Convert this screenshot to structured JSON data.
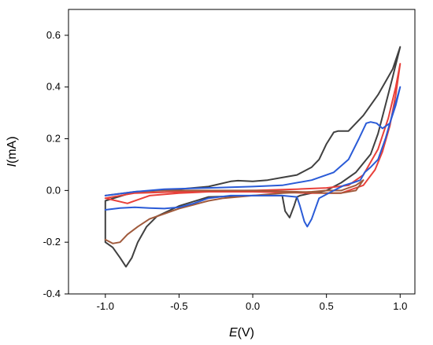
{
  "chart_data": {
    "type": "line",
    "xlabel_symbol": "E",
    "xlabel_unit": "(V)",
    "ylabel_symbol": "I",
    "ylabel_unit": "(mA)",
    "xlim": [
      -1.25,
      1.1
    ],
    "ylim": [
      -0.4,
      0.7
    ],
    "x_ticks": [
      -1.0,
      -0.5,
      0.0,
      0.5,
      1.0
    ],
    "x_tick_labels": [
      "-1.0",
      "-0.5",
      "0.0",
      "0.5",
      "1.0"
    ],
    "y_ticks": [
      -0.4,
      -0.2,
      0.0,
      0.2,
      0.4,
      0.6
    ],
    "y_tick_labels": [
      "-0.4",
      "-0.2",
      "0.0",
      "0.2",
      "0.4",
      "0.6"
    ],
    "grid": false,
    "legend": "none",
    "series": [
      {
        "color": "#404040",
        "points": [
          [
            -1.0,
            -0.04
          ],
          [
            -0.8,
            -0.005
          ],
          [
            -0.5,
            0.005
          ],
          [
            -0.3,
            0.015
          ],
          [
            -0.15,
            0.035
          ],
          [
            -0.1,
            0.038
          ],
          [
            0.0,
            0.035
          ],
          [
            0.1,
            0.04
          ],
          [
            0.2,
            0.05
          ],
          [
            0.3,
            0.06
          ],
          [
            0.4,
            0.09
          ],
          [
            0.45,
            0.12
          ],
          [
            0.5,
            0.18
          ],
          [
            0.55,
            0.225
          ],
          [
            0.58,
            0.23
          ],
          [
            0.65,
            0.23
          ],
          [
            0.75,
            0.29
          ],
          [
            0.85,
            0.37
          ],
          [
            0.95,
            0.47
          ],
          [
            1.0,
            0.555
          ],
          [
            0.95,
            0.44
          ],
          [
            0.9,
            0.33
          ],
          [
            0.85,
            0.22
          ],
          [
            0.8,
            0.14
          ],
          [
            0.7,
            0.07
          ],
          [
            0.6,
            0.03
          ],
          [
            0.5,
            0.0
          ],
          [
            0.4,
            -0.01
          ],
          [
            0.32,
            -0.02
          ],
          [
            0.3,
            -0.025
          ],
          [
            0.28,
            -0.06
          ],
          [
            0.25,
            -0.105
          ],
          [
            0.22,
            -0.08
          ],
          [
            0.2,
            -0.02
          ],
          [
            0.0,
            -0.02
          ],
          [
            -0.3,
            -0.025
          ],
          [
            -0.5,
            -0.06
          ],
          [
            -0.65,
            -0.1
          ],
          [
            -0.72,
            -0.14
          ],
          [
            -0.78,
            -0.2
          ],
          [
            -0.82,
            -0.26
          ],
          [
            -0.86,
            -0.295
          ],
          [
            -0.9,
            -0.26
          ],
          [
            -0.95,
            -0.22
          ],
          [
            -1.0,
            -0.2
          ],
          [
            -1.0,
            -0.04
          ]
        ]
      },
      {
        "color": "#e8403a",
        "points": [
          [
            -1.0,
            -0.03
          ],
          [
            -0.8,
            -0.01
          ],
          [
            -0.5,
            -0.005
          ],
          [
            -0.3,
            -0.002
          ],
          [
            0.0,
            0.0
          ],
          [
            0.3,
            0.005
          ],
          [
            0.5,
            0.01
          ],
          [
            0.65,
            0.02
          ],
          [
            0.75,
            0.06
          ],
          [
            0.85,
            0.16
          ],
          [
            0.92,
            0.28
          ],
          [
            0.97,
            0.4
          ],
          [
            1.0,
            0.49
          ],
          [
            0.97,
            0.37
          ],
          [
            0.93,
            0.25
          ],
          [
            0.88,
            0.15
          ],
          [
            0.83,
            0.08
          ],
          [
            0.75,
            0.02
          ],
          [
            0.6,
            -0.01
          ],
          [
            0.4,
            -0.01
          ],
          [
            0.0,
            -0.005
          ],
          [
            -0.3,
            -0.005
          ],
          [
            -0.5,
            -0.01
          ],
          [
            -0.7,
            -0.02
          ],
          [
            -0.85,
            -0.05
          ],
          [
            -1.0,
            -0.03
          ]
        ]
      },
      {
        "color": "#a05a3c",
        "points": [
          [
            -1.0,
            -0.19
          ],
          [
            -0.95,
            -0.205
          ],
          [
            -0.9,
            -0.2
          ],
          [
            -0.85,
            -0.17
          ],
          [
            -0.78,
            -0.14
          ],
          [
            -0.7,
            -0.11
          ],
          [
            -0.6,
            -0.09
          ],
          [
            -0.5,
            -0.07
          ],
          [
            -0.4,
            -0.055
          ],
          [
            -0.3,
            -0.04
          ],
          [
            -0.2,
            -0.03
          ],
          [
            0.0,
            -0.02
          ],
          [
            0.2,
            -0.01
          ],
          [
            0.4,
            -0.005
          ],
          [
            0.5,
            0.0
          ],
          [
            0.6,
            0.0
          ],
          [
            0.65,
            0.01
          ],
          [
            0.7,
            0.02
          ],
          [
            0.75,
            0.04
          ],
          [
            0.7,
            0.0
          ],
          [
            0.6,
            -0.01
          ],
          [
            0.5,
            -0.01
          ],
          [
            0.3,
            -0.005
          ],
          [
            0.0,
            0.0
          ],
          [
            -0.3,
            0.0
          ],
          [
            -0.6,
            0.0
          ],
          [
            -0.8,
            -0.005
          ],
          [
            -1.0,
            -0.02
          ]
        ]
      },
      {
        "color": "#2a5bd7",
        "points": [
          [
            -1.0,
            -0.075
          ],
          [
            -0.9,
            -0.068
          ],
          [
            -0.8,
            -0.065
          ],
          [
            -0.7,
            -0.068
          ],
          [
            -0.6,
            -0.07
          ],
          [
            -0.5,
            -0.065
          ],
          [
            -0.4,
            -0.05
          ],
          [
            -0.3,
            -0.03
          ],
          [
            -0.15,
            -0.02
          ],
          [
            0.0,
            -0.02
          ],
          [
            0.2,
            -0.02
          ],
          [
            0.3,
            -0.025
          ],
          [
            0.32,
            -0.06
          ],
          [
            0.35,
            -0.12
          ],
          [
            0.37,
            -0.14
          ],
          [
            0.4,
            -0.11
          ],
          [
            0.45,
            -0.03
          ],
          [
            0.55,
            0.0
          ],
          [
            0.62,
            0.02
          ],
          [
            0.68,
            0.03
          ],
          [
            0.73,
            0.04
          ],
          [
            0.76,
            0.07
          ],
          [
            0.8,
            0.09
          ],
          [
            0.85,
            0.12
          ],
          [
            0.9,
            0.2
          ],
          [
            0.95,
            0.3
          ],
          [
            1.0,
            0.4
          ],
          [
            0.97,
            0.33
          ],
          [
            0.93,
            0.26
          ],
          [
            0.88,
            0.24
          ],
          [
            0.84,
            0.26
          ],
          [
            0.8,
            0.265
          ],
          [
            0.77,
            0.26
          ],
          [
            0.72,
            0.2
          ],
          [
            0.65,
            0.12
          ],
          [
            0.55,
            0.07
          ],
          [
            0.4,
            0.04
          ],
          [
            0.2,
            0.02
          ],
          [
            0.0,
            0.015
          ],
          [
            -0.3,
            0.01
          ],
          [
            -0.6,
            0.005
          ],
          [
            -0.8,
            -0.005
          ],
          [
            -1.0,
            -0.02
          ]
        ]
      }
    ]
  }
}
